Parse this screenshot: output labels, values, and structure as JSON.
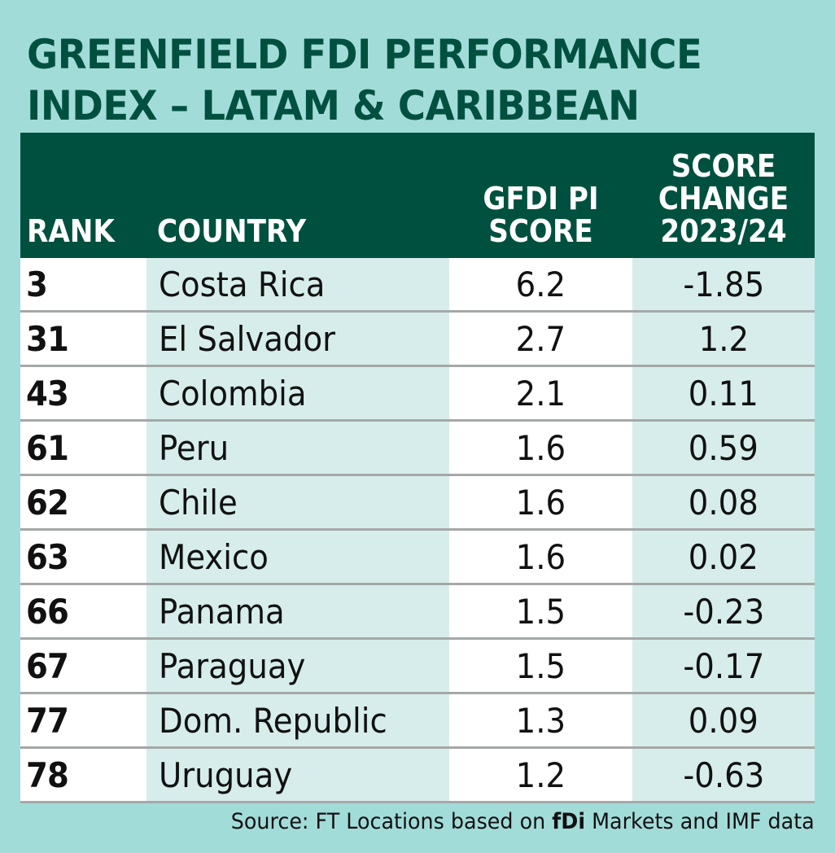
{
  "title": {
    "line1": "GREENFIELD FDI PERFORMANCE",
    "line2": "INDEX – LATAM & CARIBBEAN"
  },
  "columns": {
    "rank": "RANK",
    "country": "COUNTRY",
    "score": [
      "GFDI PI",
      "SCORE"
    ],
    "change": [
      "SCORE",
      "CHANGE",
      "2023/24"
    ]
  },
  "rows": [
    {
      "rank": "3",
      "country": "Costa Rica",
      "score": "6.2",
      "change": "-1.85"
    },
    {
      "rank": "31",
      "country": "El Salvador",
      "score": "2.7",
      "change": "1.2"
    },
    {
      "rank": "43",
      "country": "Colombia",
      "score": "2.1",
      "change": "0.11"
    },
    {
      "rank": "61",
      "country": "Peru",
      "score": "1.6",
      "change": "0.59"
    },
    {
      "rank": "62",
      "country": "Chile",
      "score": "1.6",
      "change": "0.08"
    },
    {
      "rank": "63",
      "country": "Mexico",
      "score": "1.6",
      "change": "0.02"
    },
    {
      "rank": "66",
      "country": "Panama",
      "score": "1.5",
      "change": "-0.23"
    },
    {
      "rank": "67",
      "country": "Paraguay",
      "score": "1.5",
      "change": "-0.17"
    },
    {
      "rank": "77",
      "country": "Dom. Republic",
      "score": "1.3",
      "change": "0.09"
    },
    {
      "rank": "78",
      "country": "Uruguay",
      "score": "1.2",
      "change": "-0.63"
    }
  ],
  "source": {
    "prefix": "Source: FT Locations based on ",
    "brand": "fDi",
    "suffix": " Markets and IMF data"
  },
  "colors": {
    "background": "#a2dcd9",
    "header": "#00503f",
    "light_cell": "#d6edeb",
    "separator": "#a5a8a8"
  }
}
